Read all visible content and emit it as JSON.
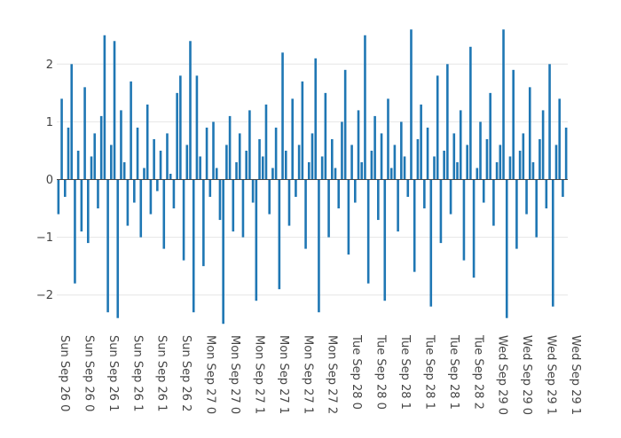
{
  "chart_data": {
    "type": "bar",
    "title": "",
    "xlabel": "",
    "ylabel": "",
    "ylim": [
      -2.65,
      2.65
    ],
    "yticks": [
      2,
      1,
      0,
      -1,
      -2
    ],
    "ytick_labels": [
      "2",
      "1",
      "0",
      "−1",
      "−2"
    ],
    "grid": true,
    "bar_color": "#1f77b4",
    "x_start": "2021-09-26T00:00",
    "x_end": "2021-09-29T12:00",
    "xtick_labels": [
      "Sun Sep 26 0",
      "Sun Sep 26 0",
      "Sun Sep 26 1",
      "Sun Sep 26 1",
      "Sun Sep 26 1",
      "Sun Sep 26 2",
      "Mon Sep 27 0",
      "Mon Sep 27 0",
      "Mon Sep 27 1",
      "Mon Sep 27 1",
      "Mon Sep 27 1",
      "Mon Sep 27 2",
      "Tue Sep 28 0",
      "Tue Sep 28 0",
      "Tue Sep 28 1",
      "Tue Sep 28 1",
      "Tue Sep 28 1",
      "Tue Sep 28 2",
      "Wed Sep 29 0",
      "Wed Sep 29 0",
      "Wed Sep 29 1",
      "Wed Sep 29 1"
    ],
    "values": [
      -0.6,
      1.4,
      -0.3,
      0.9,
      2.0,
      -1.8,
      0.5,
      -0.9,
      1.6,
      -1.1,
      0.4,
      0.8,
      -0.5,
      1.1,
      2.5,
      -2.3,
      0.6,
      2.4,
      -2.4,
      1.2,
      0.3,
      -0.8,
      1.7,
      -0.4,
      0.9,
      -1.0,
      0.2,
      1.3,
      -0.6,
      0.7,
      -0.2,
      0.5,
      -1.2,
      0.8,
      0.1,
      -0.5,
      1.5,
      1.8,
      -1.4,
      0.6,
      2.4,
      -2.3,
      1.8,
      0.4,
      -1.5,
      0.9,
      -0.3,
      1.0,
      0.2,
      -0.7,
      -2.5,
      0.6,
      1.1,
      -0.9,
      0.3,
      0.8,
      -1.0,
      0.5,
      1.2,
      -0.4,
      -2.1,
      0.7,
      0.4,
      1.3,
      -0.6,
      0.2,
      0.9,
      -1.9,
      2.2,
      0.5,
      -0.8,
      1.4,
      -0.3,
      0.6,
      1.7,
      -1.2,
      0.3,
      0.8,
      2.1,
      -2.3,
      0.4,
      1.5,
      -1.0,
      0.7,
      0.2,
      -0.5,
      1.0,
      1.9,
      -1.3,
      0.6,
      -0.4,
      1.2,
      0.3,
      2.5,
      -1.8,
      0.5,
      1.1,
      -0.7,
      0.8,
      -2.1,
      1.4,
      0.2,
      0.6,
      -0.9,
      1.0,
      0.4,
      -0.3,
      2.6,
      -1.6,
      0.7,
      1.3,
      -0.5,
      0.9,
      -2.2,
      0.4,
      1.8,
      -1.1,
      0.5,
      2.0,
      -0.6,
      0.8,
      0.3,
      1.2,
      -1.4,
      0.6,
      2.3,
      -1.7,
      0.2,
      1.0,
      -0.4,
      0.7,
      1.5,
      -0.8,
      0.3,
      0.6,
      2.6,
      -2.4,
      0.4,
      1.9,
      -1.2,
      0.5,
      0.8,
      -0.6,
      1.6,
      0.3,
      -1.0,
      0.7,
      1.2,
      -0.5,
      2.0,
      -2.2,
      0.6,
      1.4,
      -0.3,
      0.9
    ],
    "series": [
      {
        "name": "",
        "values": []
      }
    ]
  }
}
